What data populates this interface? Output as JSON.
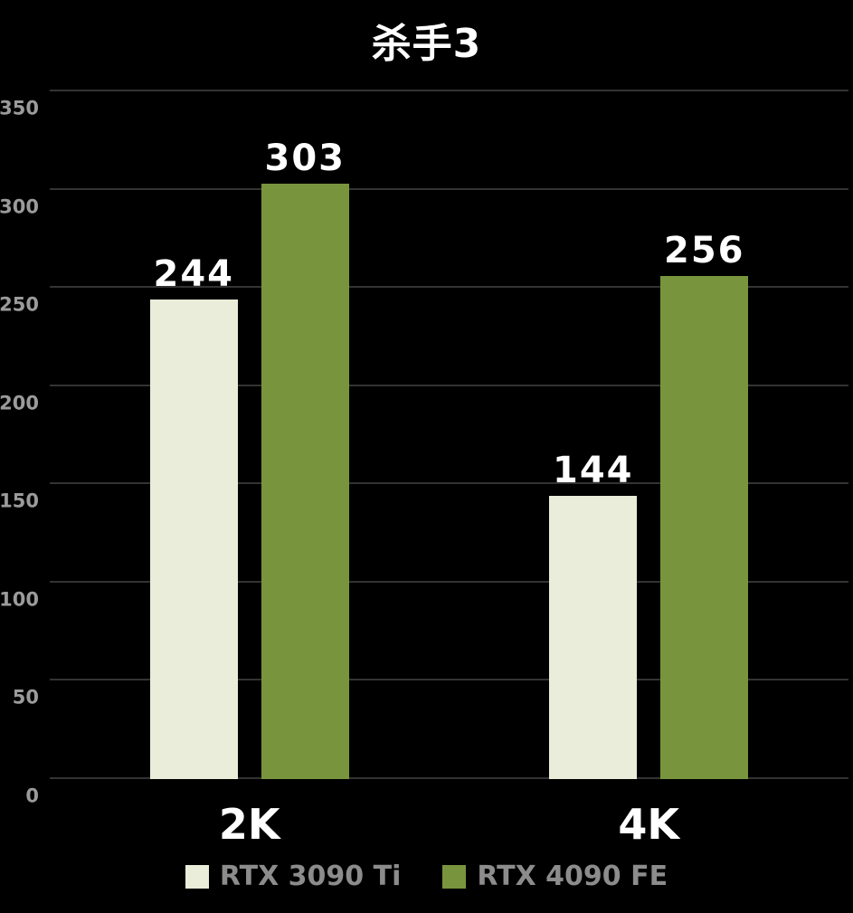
{
  "chart_data": {
    "type": "bar",
    "title": "杀手3",
    "categories": [
      "2K",
      "4K"
    ],
    "series": [
      {
        "name": "RTX 3090 Ti",
        "color": "#e9edd9",
        "values": [
          244,
          144
        ]
      },
      {
        "name": "RTX 4090 FE",
        "color": "#78953e",
        "values": [
          303,
          256
        ]
      }
    ],
    "ylim": [
      0,
      350
    ],
    "yticks": [
      0,
      50,
      100,
      150,
      200,
      250,
      300,
      350
    ],
    "grid": true,
    "legend_position": "bottom",
    "colors": {
      "background": "#000000",
      "gridline": "#333333",
      "tick_label": "#9b9b9b",
      "bar_label": "#ffffff",
      "category_label": "#ffffff",
      "legend_label": "#8c8c8c",
      "title": "#ffffff"
    }
  }
}
